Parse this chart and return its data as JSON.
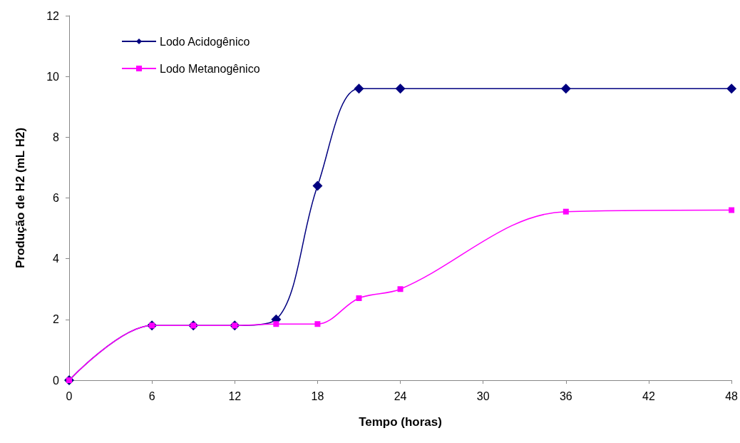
{
  "chart_data": {
    "type": "line",
    "xlabel": "Tempo (horas)",
    "ylabel": "Produção de H2 (mL H2)",
    "x": [
      0,
      6,
      9,
      12,
      15,
      18,
      21,
      24,
      36,
      48
    ],
    "series": [
      {
        "name": "Lodo Acidogênico",
        "color": "#000080",
        "marker": "diamond",
        "values": [
          0,
          1.8,
          1.8,
          1.8,
          2.0,
          6.4,
          9.6,
          9.6,
          9.6,
          9.6
        ]
      },
      {
        "name": "Lodo Metanogênico",
        "color": "#ff00ff",
        "marker": "square",
        "values": [
          0,
          1.8,
          1.8,
          1.8,
          1.85,
          1.85,
          2.7,
          3.0,
          5.55,
          5.6
        ]
      }
    ],
    "xlim": [
      0,
      48
    ],
    "xticks": [
      0,
      6,
      12,
      18,
      24,
      30,
      36,
      42,
      48
    ],
    "ylim": [
      0,
      12
    ],
    "yticks": [
      0,
      2,
      4,
      6,
      8,
      10,
      12
    ],
    "grid": false,
    "legend": "top left",
    "line_style": "solid"
  }
}
